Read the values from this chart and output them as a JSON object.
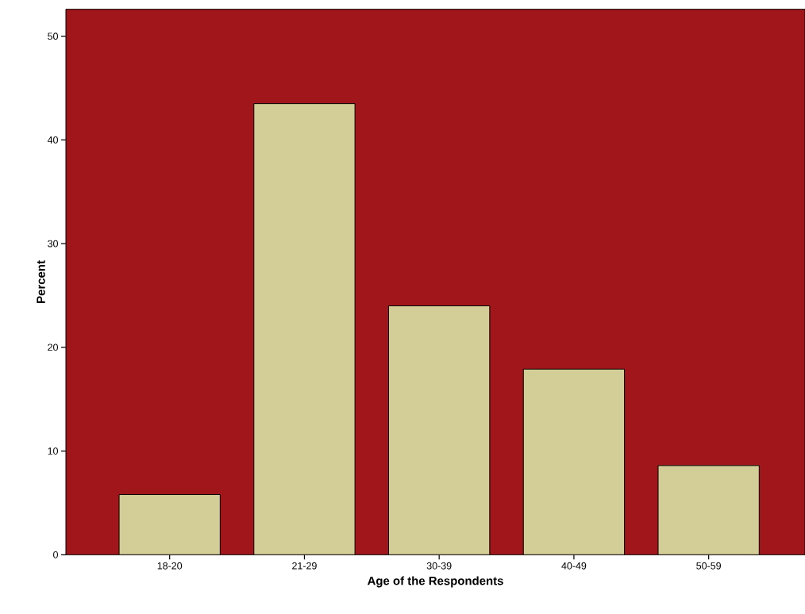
{
  "chart_data": {
    "type": "bar",
    "xlabel": "Age of the Respondents",
    "ylabel": "Percent",
    "categories": [
      "18-20",
      "21-29",
      "30-39",
      "40-49",
      "50-59"
    ],
    "values": [
      5.8,
      43.5,
      24.0,
      17.9,
      8.6
    ],
    "color": "#d3cd97",
    "ylim": [
      0,
      52.6
    ],
    "yticks": [
      0,
      10,
      20,
      30,
      40,
      50
    ]
  }
}
